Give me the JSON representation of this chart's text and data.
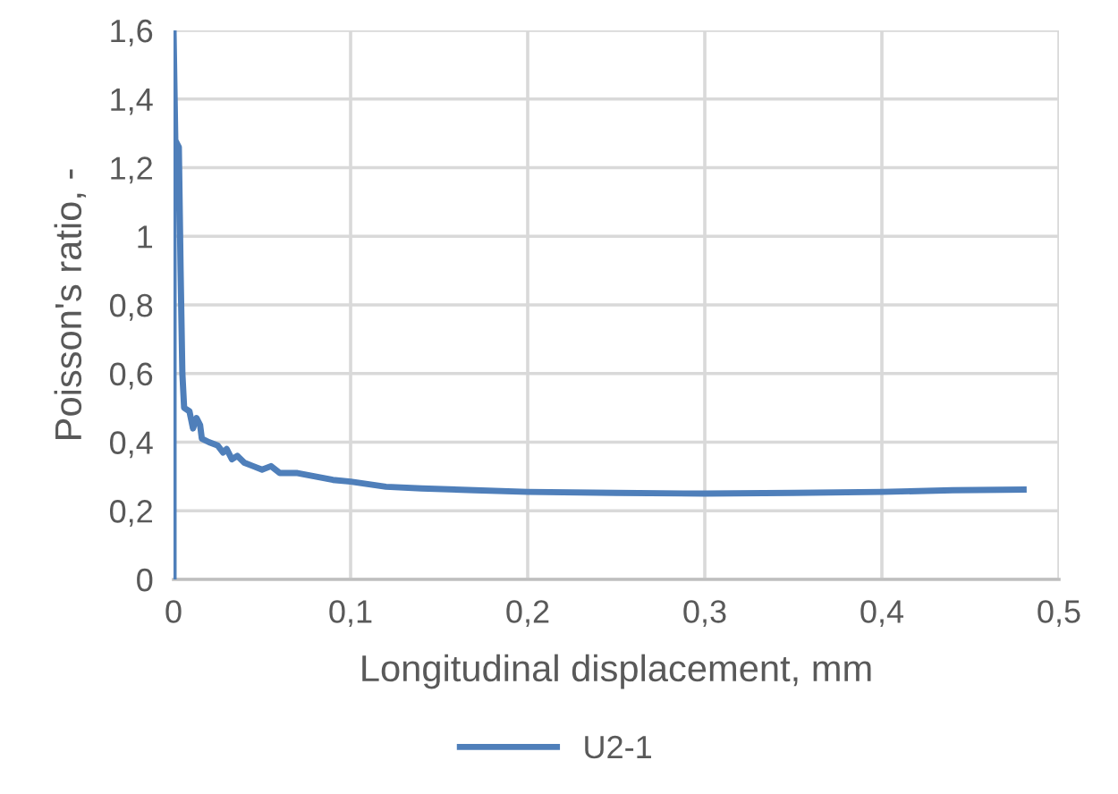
{
  "chart_data": {
    "type": "line",
    "xlabel": "Longitudinal displacement, mm",
    "ylabel": "Poisson's ratio, -",
    "xlim": [
      0,
      0.5
    ],
    "ylim": [
      0,
      1.6
    ],
    "xticks": [
      {
        "value": 0,
        "label": "0"
      },
      {
        "value": 0.1,
        "label": "0,1"
      },
      {
        "value": 0.2,
        "label": "0,2"
      },
      {
        "value": 0.3,
        "label": "0,3"
      },
      {
        "value": 0.4,
        "label": "0,4"
      },
      {
        "value": 0.5,
        "label": "0,5"
      }
    ],
    "yticks": [
      {
        "value": 0,
        "label": "0"
      },
      {
        "value": 0.2,
        "label": "0,2"
      },
      {
        "value": 0.4,
        "label": "0,4"
      },
      {
        "value": 0.6,
        "label": "0,6"
      },
      {
        "value": 0.8,
        "label": "0,8"
      },
      {
        "value": 1,
        "label": "1"
      },
      {
        "value": 1.2,
        "label": "1,2"
      },
      {
        "value": 1.4,
        "label": "1,4"
      },
      {
        "value": 1.6,
        "label": "1,6"
      }
    ],
    "grid": true,
    "legend": "bottom",
    "marker": "none",
    "line_style": "solid",
    "series": [
      {
        "name": "U2-1",
        "color": "#4f7fba",
        "x": [
          0,
          0,
          0.001,
          0.003,
          0.004,
          0.005,
          0.006,
          0.009,
          0.011,
          0.013,
          0.015,
          0.016,
          0.02,
          0.025,
          0.028,
          0.03,
          0.033,
          0.036,
          0.04,
          0.045,
          0.05,
          0.055,
          0.06,
          0.07,
          0.08,
          0.09,
          0.1,
          0.12,
          0.14,
          0.17,
          0.2,
          0.25,
          0.3,
          0.35,
          0.4,
          0.44,
          0.48
        ],
        "values": [
          0,
          1.6,
          1.28,
          1.26,
          0.9,
          0.6,
          0.5,
          0.49,
          0.44,
          0.47,
          0.45,
          0.41,
          0.4,
          0.39,
          0.37,
          0.38,
          0.35,
          0.36,
          0.34,
          0.33,
          0.32,
          0.33,
          0.31,
          0.31,
          0.3,
          0.29,
          0.285,
          0.27,
          0.265,
          0.26,
          0.255,
          0.252,
          0.25,
          0.252,
          0.255,
          0.26,
          0.262
        ]
      }
    ]
  }
}
